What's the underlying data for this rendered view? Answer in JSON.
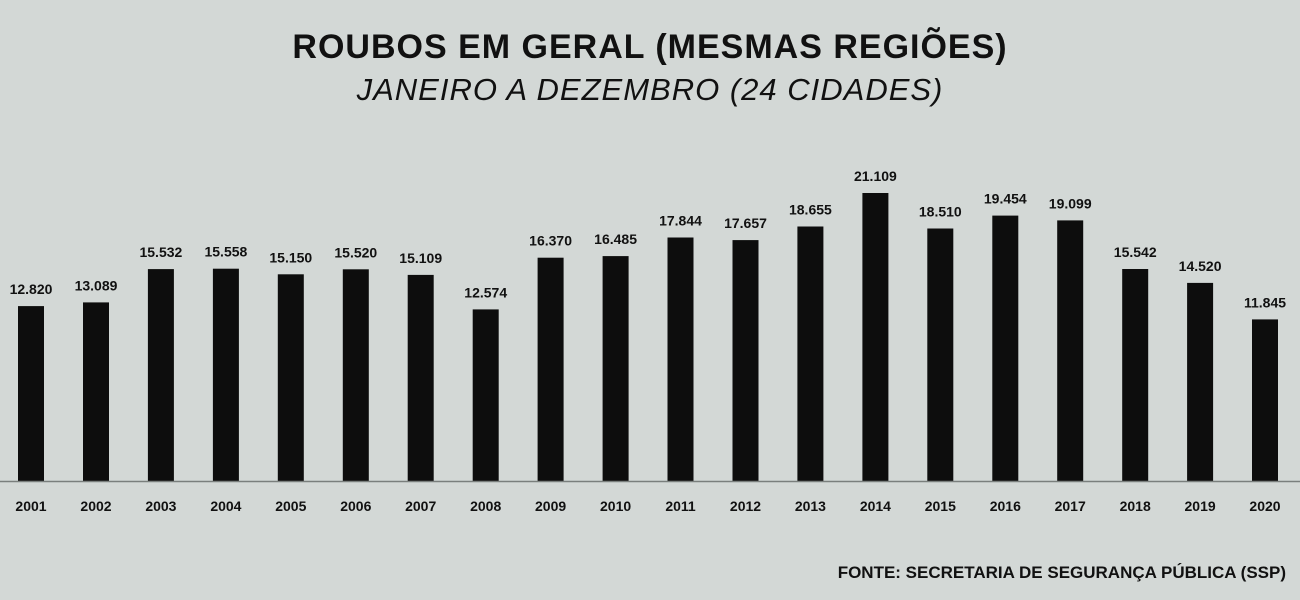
{
  "title": "ROUBOS EM GERAL (MESMAS REGIÕES)",
  "subtitle": "JANEIRO A DEZEMBRO (24 CIDADES)",
  "source": "FONTE: SECRETARIA DE SEGURANÇA PÚBLICA (SSP)",
  "chart_data": {
    "type": "bar",
    "categories": [
      "2001",
      "2002",
      "2003",
      "2004",
      "2005",
      "2006",
      "2007",
      "2008",
      "2009",
      "2010",
      "2011",
      "2012",
      "2013",
      "2014",
      "2015",
      "2016",
      "2017",
      "2018",
      "2019",
      "2020"
    ],
    "values": [
      12820,
      13089,
      15532,
      15558,
      15150,
      15520,
      15109,
      12574,
      16370,
      16485,
      17844,
      17657,
      18655,
      21109,
      18510,
      19454,
      19099,
      15542,
      14520,
      11845
    ],
    "labels": [
      "12.820",
      "13.089",
      "15.532",
      "15.558",
      "15.150",
      "15.520",
      "15.109",
      "12.574",
      "16.370",
      "16.485",
      "17.844",
      "17.657",
      "18.655",
      "21.109",
      "18.510",
      "19.454",
      "19.099",
      "15.542",
      "14.520",
      "11.845"
    ],
    "ylim": [
      0,
      21109
    ],
    "grid": false,
    "legend": "none",
    "colors": {
      "bar": "#0d0d0d",
      "axis": "#7a7f7d",
      "background": "#d3d8d6"
    }
  }
}
